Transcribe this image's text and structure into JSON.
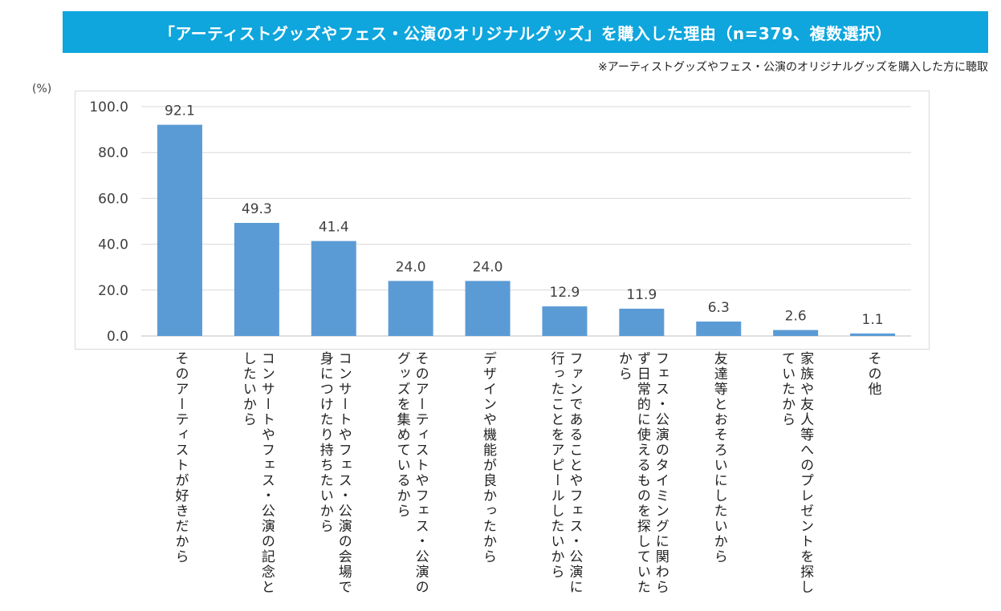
{
  "header": {
    "title": "「アーティストグッズやフェス・公演のオリジナルグッズ」を購入した理由（n=379、複数選択）",
    "note": "※アーティストグッズやフェス・公演のオリジナルグッズを購入した方に聴取"
  },
  "colors": {
    "title_bg": "#0ea6dd",
    "bar": "#5b9bd5",
    "grid": "#d9d9d9"
  },
  "chart_data": {
    "type": "bar",
    "ylabel": "(%)",
    "ylim": [
      0,
      100
    ],
    "yticks": [
      "0.0",
      "20.0",
      "40.0",
      "60.0",
      "80.0",
      "100.0"
    ],
    "grid": true,
    "categories": [
      "そのアーティストが好きだから",
      "コンサートやフェス・公演の記念としたいから",
      "コンサートやフェス・公演の会場で身につけたり持ちたいから",
      "そのアーティストやフェス・公演のグッズを集めているから",
      "デザインや機能が良かったから",
      "ファンであることやフェス・公演に行ったことをアピールしたいから",
      "フェス・公演のタイミングに関わらず日常的に使えるものを探していたから",
      "友達等とおそろいにしたいから",
      "家族や友人等へのプレゼントを探していたから",
      "その他"
    ],
    "values": [
      92.1,
      49.3,
      41.4,
      24.0,
      24.0,
      12.9,
      11.9,
      6.3,
      2.6,
      1.1
    ],
    "labels": [
      "92.1",
      "49.3",
      "41.4",
      "24.0",
      "24.0",
      "12.9",
      "11.9",
      "6.3",
      "2.6",
      "1.1"
    ]
  }
}
